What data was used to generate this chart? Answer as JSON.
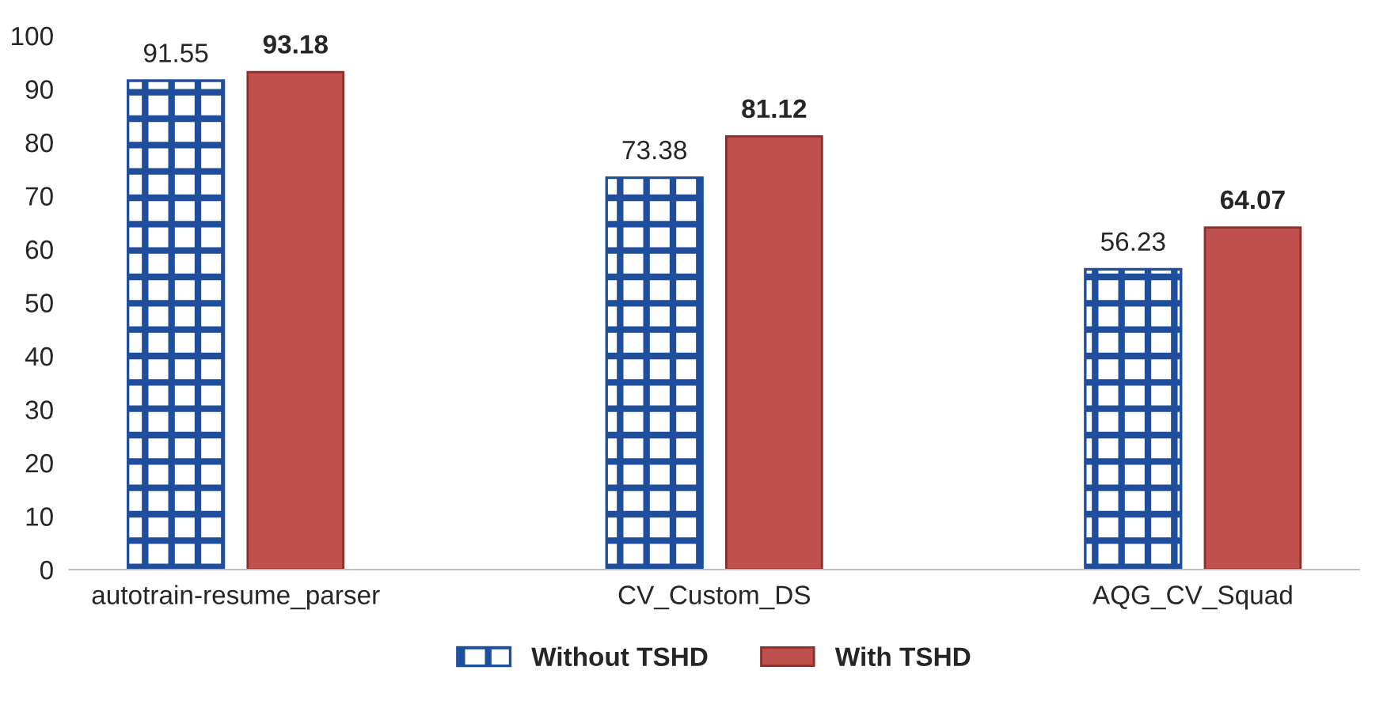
{
  "chart_data": {
    "type": "bar",
    "categories": [
      "autotrain-resume_parser",
      "CV_Custom_DS",
      "AQG_CV_Squad"
    ],
    "series": [
      {
        "name": "Without TSHD",
        "color": "#1f4e9c",
        "values": [
          91.55,
          73.38,
          56.23
        ]
      },
      {
        "name": "With TSHD",
        "color": "#c0504d",
        "values": [
          93.18,
          81.12,
          64.07
        ]
      }
    ],
    "ylim": [
      0,
      100
    ],
    "yticks": [
      0,
      10,
      20,
      30,
      40,
      50,
      60,
      70,
      80,
      90,
      100
    ],
    "data_labels": true,
    "grid": false,
    "legend": "bottom"
  }
}
